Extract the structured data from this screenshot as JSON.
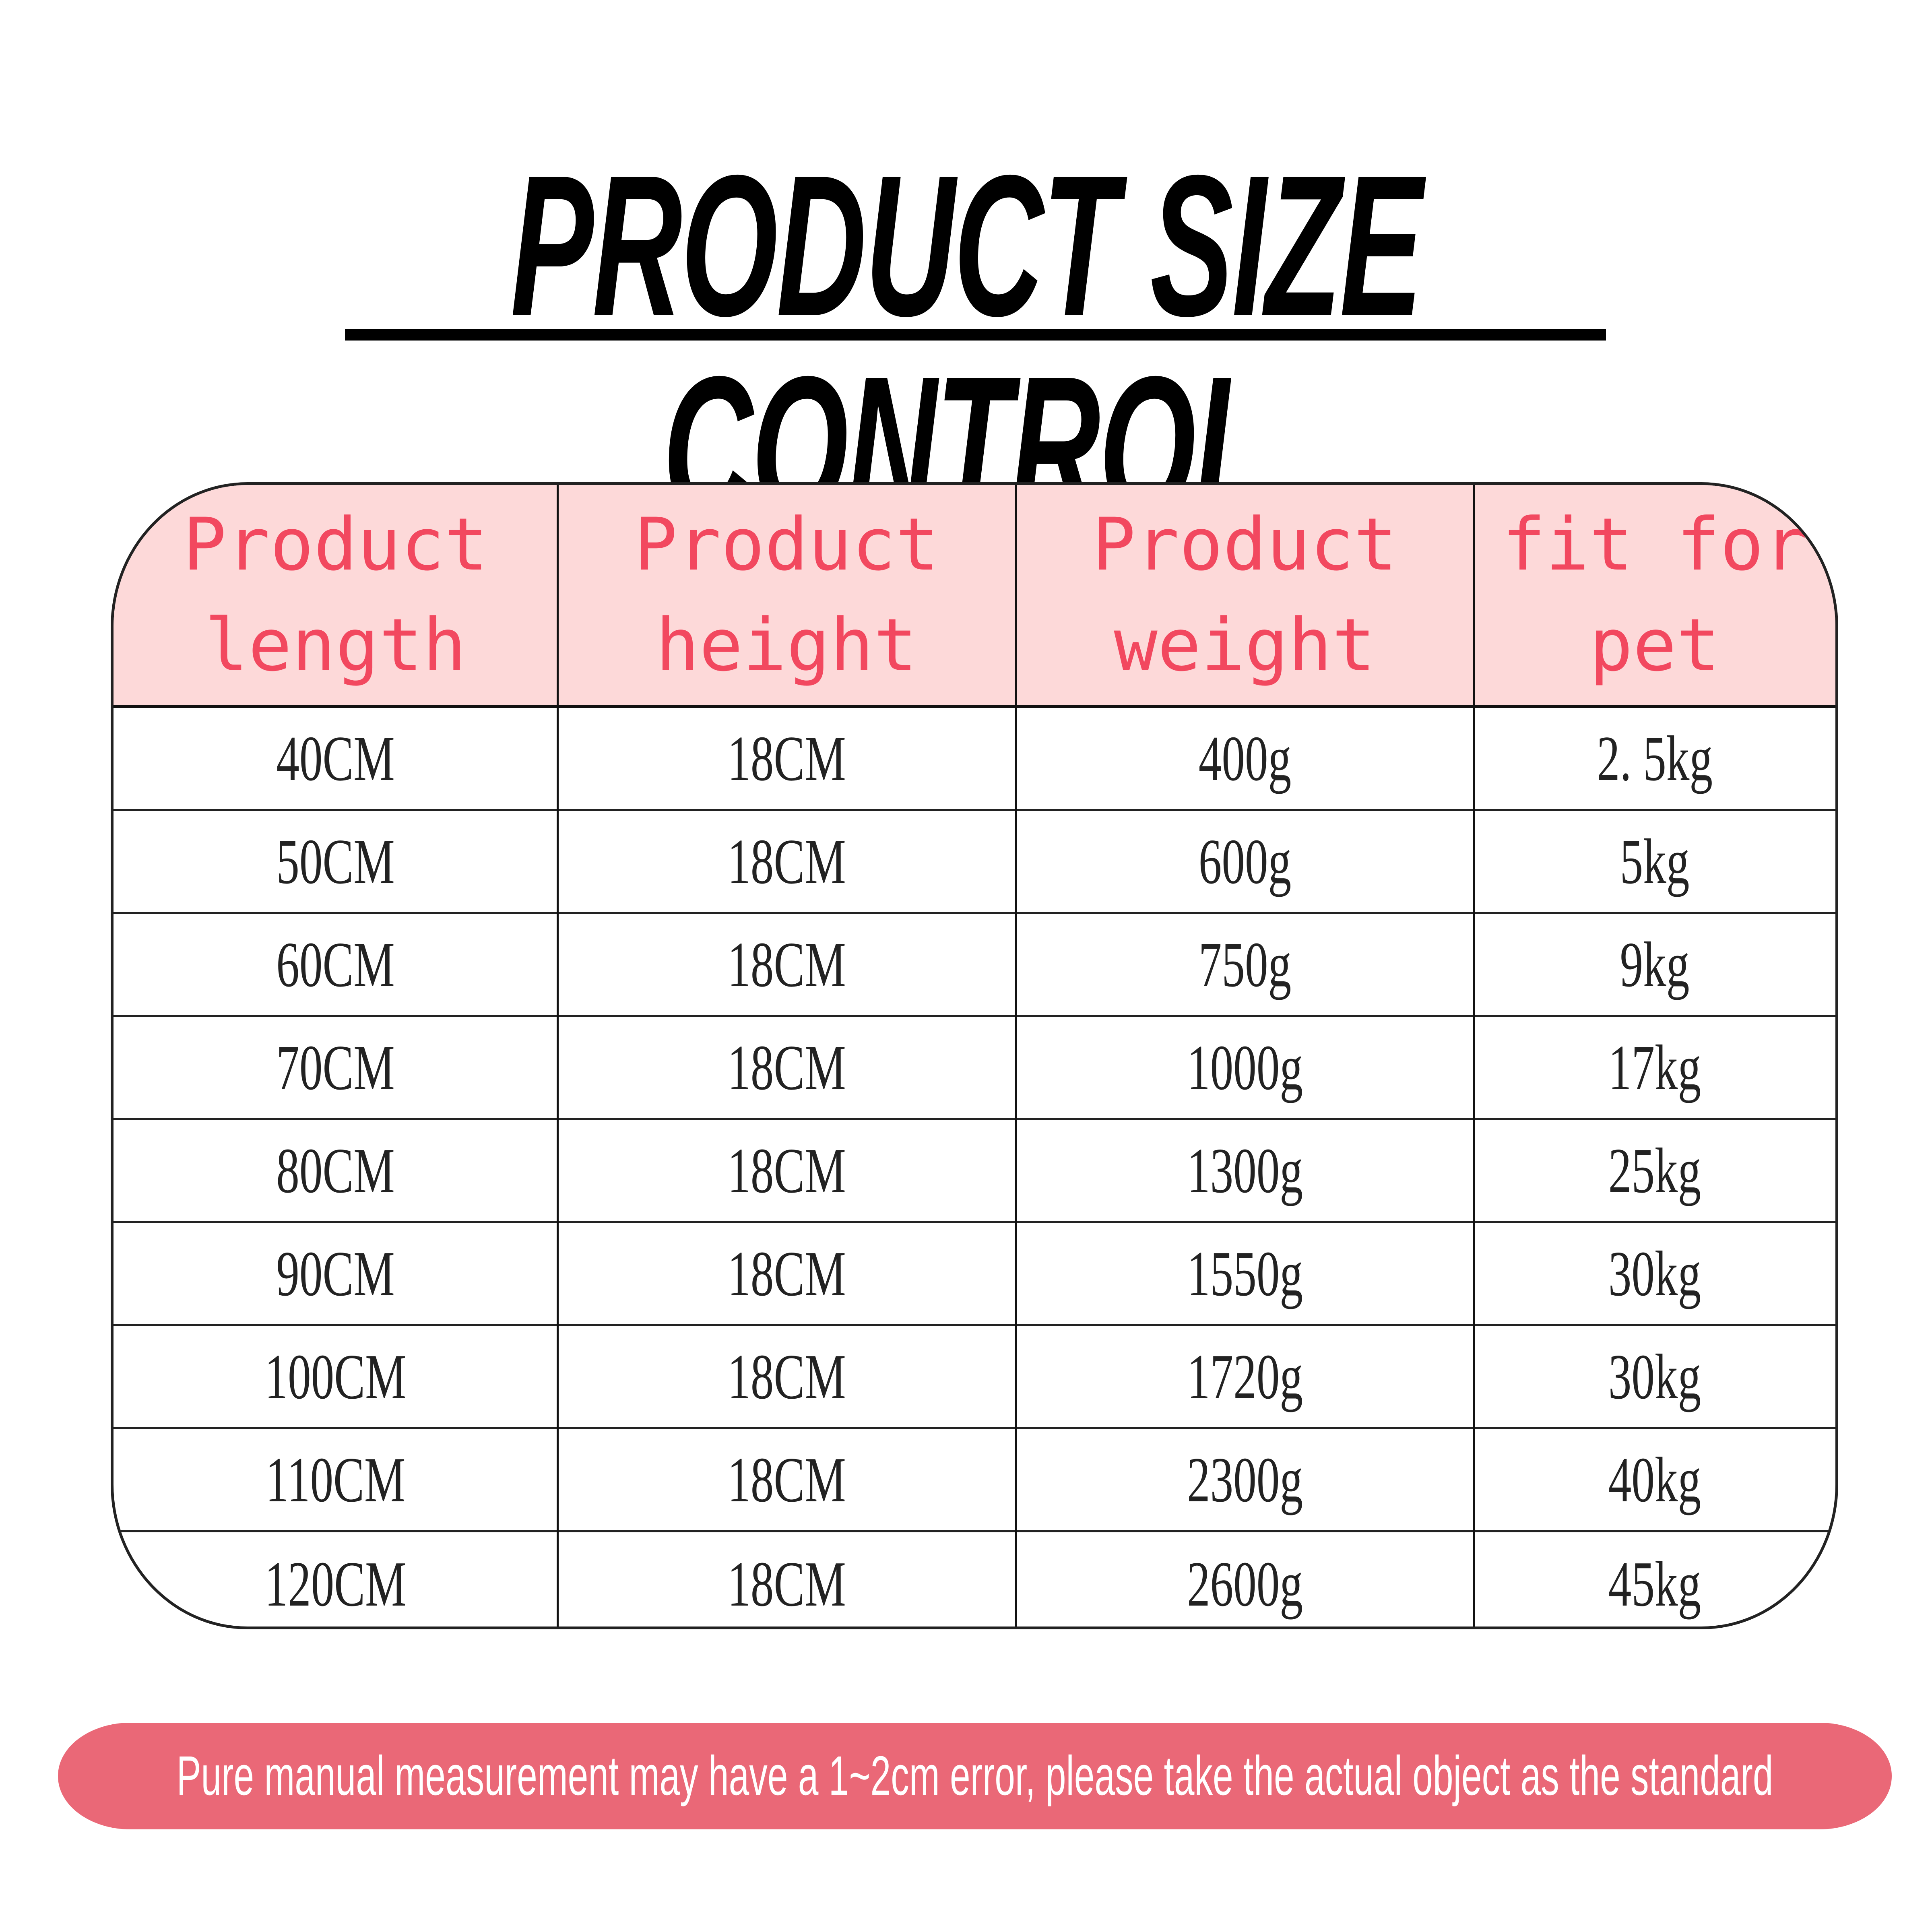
{
  "title": "PRODUCT SIZE CONTROL",
  "colors": {
    "header_bg": "#fdd9d9",
    "header_text": "#f2485f",
    "banner_bg": "#ea6877"
  },
  "table": {
    "headers": [
      [
        "Product",
        "length"
      ],
      [
        "Product",
        "height"
      ],
      [
        "Product",
        "weight"
      ],
      [
        "fit for",
        "pet"
      ]
    ],
    "rows": [
      [
        "40CM",
        "18CM",
        "400g",
        "2. 5kg"
      ],
      [
        "50CM",
        "18CM",
        "600g",
        "5kg"
      ],
      [
        "60CM",
        "18CM",
        "750g",
        "9kg"
      ],
      [
        "70CM",
        "18CM",
        "1000g",
        "17kg"
      ],
      [
        "80CM",
        "18CM",
        "1300g",
        "25kg"
      ],
      [
        "90CM",
        "18CM",
        "1550g",
        "30kg"
      ],
      [
        "100CM",
        "18CM",
        "1720g",
        "30kg"
      ],
      [
        "110CM",
        "18CM",
        "2300g",
        "40kg"
      ],
      [
        "120CM",
        "18CM",
        "2600g",
        "45kg"
      ]
    ]
  },
  "notice": "Pure manual measurement may have a 1~2cm error, please take the actual object as the standard"
}
